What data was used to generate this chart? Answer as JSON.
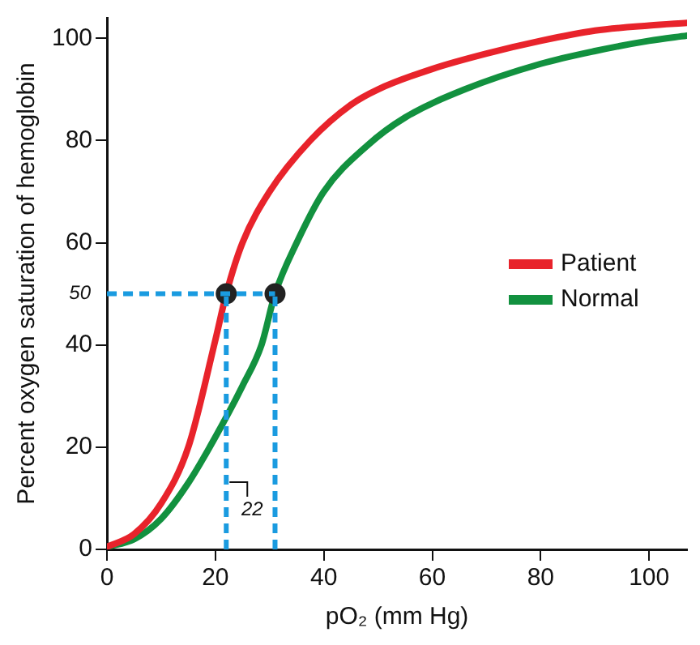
{
  "chart_data": {
    "type": "line",
    "xlabel": "pO₂ (mm Hg)",
    "ylabel": "Percent oxygen saturation of hemoglobin",
    "xlim": [
      0,
      107
    ],
    "xticks": [
      0,
      20,
      40,
      60,
      80,
      100
    ],
    "ylim": [
      0,
      104
    ],
    "yticks": [
      0,
      20,
      40,
      60,
      80,
      100
    ],
    "grid": false,
    "legend": "right",
    "marker": "none",
    "line_style": "solid",
    "series": [
      {
        "name": "Patient",
        "color": "#e8232b",
        "x": [
          0,
          5,
          10,
          15,
          20,
          22,
          25,
          30,
          37.5,
          45,
          50,
          60,
          70,
          80,
          90,
          100,
          107
        ],
        "values": [
          0.5,
          3,
          9,
          20,
          41,
          50,
          60,
          70,
          80,
          87,
          90,
          94,
          97,
          99.5,
          101.5,
          102.5,
          103
        ]
      },
      {
        "name": "Normal",
        "color": "#12913f",
        "x": [
          0,
          5,
          10,
          15,
          20,
          25,
          28.5,
          31,
          35,
          40,
          48,
          55,
          66,
          80,
          90,
          100,
          107
        ],
        "values": [
          0.5,
          2,
          6,
          13,
          22,
          32,
          40,
          50,
          60,
          70,
          79,
          84.5,
          90,
          95,
          97.5,
          99.5,
          100.5
        ]
      },
      {
        "type": "scatter",
        "marker": "circle",
        "color": "#222222",
        "x": [
          22,
          31
        ],
        "values": [
          50,
          50
        ]
      }
    ],
    "ref_lines": [
      {
        "axis": "y",
        "value": 50,
        "label": "50",
        "color": "#1a9be0",
        "line_style": "dashed"
      },
      {
        "axis": "x",
        "value": 22,
        "label": "22",
        "color": "#1a9be0",
        "line_style": "dashed"
      },
      {
        "axis": "x",
        "value": 31,
        "label": null,
        "color": "#1a9be0",
        "line_style": "dashed"
      }
    ]
  }
}
